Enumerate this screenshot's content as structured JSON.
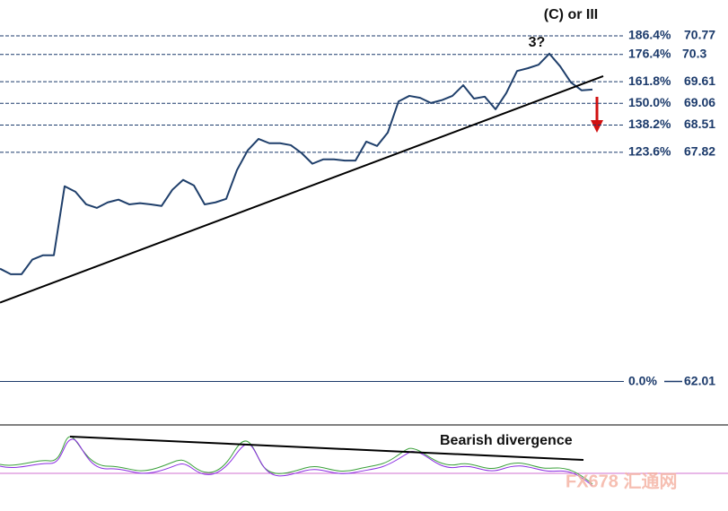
{
  "chart_data": {
    "type": "line",
    "annotations": {
      "top": "(C) or III",
      "peak": "3?",
      "divergence": "Bearish divergence"
    },
    "watermark": "FX678 汇通网",
    "values": [
      64.87,
      64.73,
      64.73,
      65.1,
      65.21,
      65.21,
      66.96,
      66.82,
      66.5,
      66.41,
      66.55,
      66.62,
      66.5,
      66.53,
      66.5,
      66.46,
      66.87,
      67.12,
      66.98,
      66.5,
      66.55,
      66.64,
      67.37,
      67.87,
      68.16,
      68.05,
      68.05,
      68.0,
      67.8,
      67.53,
      67.64,
      67.64,
      67.61,
      67.61,
      68.09,
      67.98,
      68.32,
      69.11,
      69.25,
      69.2,
      69.07,
      69.14,
      69.25,
      69.52,
      69.18,
      69.23,
      68.91,
      69.32,
      69.88,
      69.95,
      70.04,
      70.32,
      70.0,
      69.59,
      69.39,
      69.41
    ],
    "color": "#1f3f6b",
    "trendline": [
      64.01,
      69.75
    ],
    "ylim": [
      61.0,
      71.68
    ],
    "yticks": [
      70.77,
      70.3,
      69.61,
      69.06,
      68.51,
      67.82,
      62.01
    ],
    "level_labels": [
      "186.4%",
      "176.4%",
      "161.8%",
      "150.0%",
      "138.2%",
      "123.6%",
      "0.0%"
    ]
  }
}
